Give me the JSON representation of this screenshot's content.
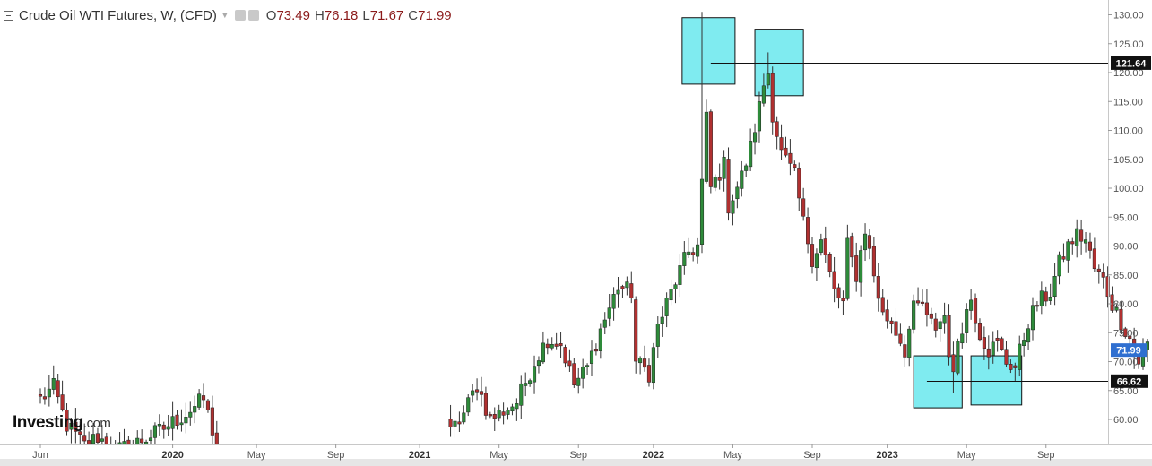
{
  "header": {
    "title": "Crude Oil WTI Futures, W, (CFD)",
    "open_prefix": "O",
    "open": "73.49",
    "high_prefix": "H",
    "high": "76.18",
    "low_prefix": "L",
    "low": "71.67",
    "close_prefix": "C",
    "close": "71.99"
  },
  "logo": {
    "name": "Investing",
    "domain": ".com"
  },
  "colors": {
    "up": "#2e8b3a",
    "down": "#b03030",
    "wick": "#333333",
    "highlight_fill": "#5fe6ec",
    "price_tag": "#2f6fd0",
    "level_tag": "#111111"
  },
  "price_tags": {
    "current": "71.99",
    "resistance": "121.64",
    "support": "66.62"
  },
  "chart_data": {
    "type": "candlestick",
    "interval": "weekly",
    "ylim": [
      55,
      131
    ],
    "yticks": [
      60,
      65,
      70,
      75,
      80,
      85,
      90,
      95,
      100,
      105,
      110,
      115,
      120,
      125,
      130
    ],
    "xtick_labels": [
      {
        "label": "Jun",
        "week": 0,
        "year": false
      },
      {
        "label": "2020",
        "week": 30,
        "year": true
      },
      {
        "label": "May",
        "week": 49,
        "year": false
      },
      {
        "label": "Sep",
        "week": 67,
        "year": false
      },
      {
        "label": "2021",
        "week": 86,
        "year": true
      },
      {
        "label": "May",
        "week": 104,
        "year": false
      },
      {
        "label": "Sep",
        "week": 122,
        "year": false
      },
      {
        "label": "2022",
        "week": 139,
        "year": true
      },
      {
        "label": "May",
        "week": 157,
        "year": false
      },
      {
        "label": "Sep",
        "week": 175,
        "year": false
      },
      {
        "label": "2023",
        "week": 192,
        "year": true
      },
      {
        "label": "May",
        "week": 210,
        "year": false
      },
      {
        "label": "Sep",
        "week": 228,
        "year": false
      }
    ],
    "horizontal_lines": [
      {
        "value": 121.64,
        "from_week": 152
      },
      {
        "value": 66.62,
        "from_week": 201
      }
    ],
    "highlight_boxes": [
      {
        "week_start": 145.5,
        "week_end": 157.5,
        "low": 118,
        "high": 129.5
      },
      {
        "week_start": 162,
        "week_end": 173,
        "low": 116,
        "high": 127.5
      },
      {
        "week_start": 198,
        "week_end": 209,
        "low": 62,
        "high": 71
      },
      {
        "week_start": 211,
        "week_end": 222.5,
        "low": 62.5,
        "high": 71
      }
    ],
    "anchors": [
      [
        0,
        63.5
      ],
      [
        3,
        65.5
      ],
      [
        6,
        59
      ],
      [
        10,
        55.5
      ],
      [
        13,
        57
      ],
      [
        17,
        54.5
      ],
      [
        22,
        56
      ],
      [
        27,
        58
      ],
      [
        33,
        61
      ],
      [
        37,
        63.5
      ],
      [
        40,
        55.5
      ],
      [
        41,
        50
      ],
      [
        93,
        57.5
      ],
      [
        96,
        61
      ],
      [
        99,
        66
      ],
      [
        102,
        60
      ],
      [
        108,
        63
      ],
      [
        112,
        70
      ],
      [
        115,
        74
      ],
      [
        118,
        73
      ],
      [
        121,
        66
      ],
      [
        124,
        69
      ],
      [
        127,
        75.5
      ],
      [
        131,
        83
      ],
      [
        134,
        82
      ],
      [
        135,
        70
      ],
      [
        138,
        68
      ],
      [
        140,
        76
      ],
      [
        144,
        84
      ],
      [
        147,
        89
      ],
      [
        149,
        90
      ],
      [
        151,
        112
      ],
      [
        152,
        100
      ],
      [
        155,
        104
      ],
      [
        156,
        97
      ],
      [
        159,
        102
      ],
      [
        161,
        107
      ],
      [
        163,
        114
      ],
      [
        164,
        118
      ],
      [
        165,
        120
      ],
      [
        166,
        113
      ],
      [
        168,
        106
      ],
      [
        171,
        102
      ],
      [
        173,
        94
      ],
      [
        175,
        88
      ],
      [
        177,
        91
      ],
      [
        180,
        82
      ],
      [
        182,
        80
      ],
      [
        183,
        90
      ],
      [
        185,
        85
      ],
      [
        187,
        93
      ],
      [
        189,
        85
      ],
      [
        191,
        78
      ],
      [
        193,
        77
      ],
      [
        196,
        72
      ],
      [
        198,
        79
      ],
      [
        200,
        80
      ],
      [
        201,
        77
      ],
      [
        203,
        76
      ],
      [
        205,
        78
      ],
      [
        206,
        72
      ],
      [
        207,
        67
      ],
      [
        208,
        74
      ],
      [
        211,
        81
      ],
      [
        213,
        75
      ],
      [
        215,
        72
      ],
      [
        217,
        73
      ],
      [
        219,
        70
      ],
      [
        221,
        69
      ],
      [
        224,
        77
      ],
      [
        226,
        80
      ],
      [
        229,
        82
      ],
      [
        231,
        87
      ],
      [
        233,
        90
      ],
      [
        235,
        92
      ],
      [
        237,
        91
      ],
      [
        239,
        86
      ],
      [
        241,
        84
      ],
      [
        243,
        80
      ],
      [
        245,
        77
      ],
      [
        247,
        74
      ],
      [
        248,
        71
      ],
      [
        249,
        70
      ],
      [
        251,
        73
      ],
      [
        252,
        72
      ]
    ],
    "last_candle": {
      "open": 73.49,
      "high": 76.18,
      "low": 71.67,
      "close": 71.99
    }
  }
}
